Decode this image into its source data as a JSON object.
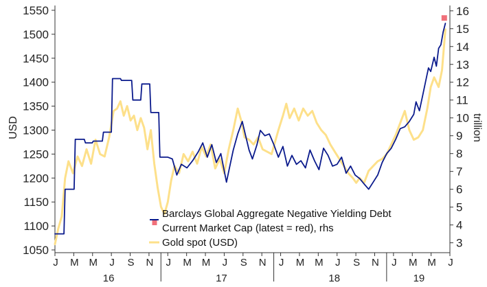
{
  "chart_data": {
    "type": "line",
    "title": "",
    "left_axis": {
      "label": "USD",
      "ylim": [
        1050,
        1560
      ],
      "ticks": [
        1050,
        1100,
        1150,
        1200,
        1250,
        1300,
        1350,
        1400,
        1450,
        1500,
        1550
      ]
    },
    "right_axis": {
      "label": "trillion",
      "ylim": [
        2.6,
        16.3
      ],
      "ticks": [
        3,
        4,
        5,
        6,
        7,
        8,
        9,
        10,
        11,
        12,
        13,
        14,
        15,
        16
      ]
    },
    "x_axis": {
      "start": 2016.0,
      "end": 2019.5,
      "month_labels": [
        "J",
        "M",
        "M",
        "J",
        "S",
        "N",
        "J",
        "M",
        "M",
        "J",
        "S",
        "N",
        "J",
        "M",
        "M",
        "J",
        "S",
        "N",
        "J",
        "M",
        "M",
        "J"
      ],
      "month_offsets": [
        0,
        2,
        4,
        6,
        8,
        10,
        12,
        14,
        16,
        18,
        20,
        22,
        24,
        26,
        28,
        30,
        32,
        34,
        36,
        38,
        40,
        42
      ],
      "year_labels": [
        {
          "label": "16",
          "at": 2016.5
        },
        {
          "label": "17",
          "at": 2017.5
        },
        {
          "label": "18",
          "at": 2018.5
        },
        {
          "label": "19",
          "at": 2019.25
        }
      ]
    },
    "series": [
      {
        "name": "Barclays Global Aggregate Negative Yielding Debt Current Market Cap (latest = red), rhs",
        "axis": "right",
        "color": "#0a1a8c",
        "points": [
          [
            2016.0,
            3.5
          ],
          [
            2016.08,
            3.5
          ],
          [
            2016.09,
            6.0
          ],
          [
            2016.17,
            6.0
          ],
          [
            2016.18,
            8.8
          ],
          [
            2016.26,
            8.8
          ],
          [
            2016.27,
            8.6
          ],
          [
            2016.33,
            8.6
          ],
          [
            2016.34,
            8.7
          ],
          [
            2016.42,
            8.7
          ],
          [
            2016.43,
            9.2
          ],
          [
            2016.5,
            9.2
          ],
          [
            2016.51,
            12.2
          ],
          [
            2016.58,
            12.2
          ],
          [
            2016.59,
            12.1
          ],
          [
            2016.68,
            12.1
          ],
          [
            2016.69,
            11.0
          ],
          [
            2016.76,
            11.0
          ],
          [
            2016.77,
            11.9
          ],
          [
            2016.84,
            11.9
          ],
          [
            2016.85,
            10.3
          ],
          [
            2016.92,
            10.3
          ],
          [
            2016.93,
            7.8
          ],
          [
            2017.0,
            7.8
          ],
          [
            2017.04,
            7.7
          ],
          [
            2017.08,
            6.8
          ],
          [
            2017.12,
            7.4
          ],
          [
            2017.17,
            7.2
          ],
          [
            2017.22,
            7.6
          ],
          [
            2017.27,
            8.1
          ],
          [
            2017.31,
            8.6
          ],
          [
            2017.35,
            7.8
          ],
          [
            2017.39,
            8.5
          ],
          [
            2017.43,
            7.5
          ],
          [
            2017.47,
            8.0
          ],
          [
            2017.52,
            6.4
          ],
          [
            2017.55,
            7.3
          ],
          [
            2017.58,
            8.2
          ],
          [
            2017.62,
            9.1
          ],
          [
            2017.66,
            9.8
          ],
          [
            2017.69,
            9.0
          ],
          [
            2017.72,
            8.2
          ],
          [
            2017.75,
            7.7
          ],
          [
            2017.79,
            8.5
          ],
          [
            2017.82,
            9.3
          ],
          [
            2017.86,
            9.0
          ],
          [
            2017.9,
            9.1
          ],
          [
            2017.94,
            8.5
          ],
          [
            2017.98,
            7.8
          ],
          [
            2018.02,
            8.4
          ],
          [
            2018.06,
            7.3
          ],
          [
            2018.1,
            7.9
          ],
          [
            2018.14,
            7.4
          ],
          [
            2018.18,
            7.6
          ],
          [
            2018.22,
            7.2
          ],
          [
            2018.26,
            8.2
          ],
          [
            2018.3,
            7.6
          ],
          [
            2018.34,
            7.1
          ],
          [
            2018.38,
            8.3
          ],
          [
            2018.42,
            7.9
          ],
          [
            2018.46,
            7.3
          ],
          [
            2018.5,
            7.4
          ],
          [
            2018.54,
            7.8
          ],
          [
            2018.58,
            6.9
          ],
          [
            2018.62,
            7.3
          ],
          [
            2018.66,
            6.8
          ],
          [
            2018.7,
            6.6
          ],
          [
            2018.74,
            6.3
          ],
          [
            2018.78,
            6.0
          ],
          [
            2018.82,
            6.4
          ],
          [
            2018.86,
            6.8
          ],
          [
            2018.9,
            7.5
          ],
          [
            2018.94,
            8.0
          ],
          [
            2018.98,
            8.3
          ],
          [
            2019.02,
            8.8
          ],
          [
            2019.06,
            9.4
          ],
          [
            2019.1,
            9.5
          ],
          [
            2019.14,
            9.8
          ],
          [
            2019.18,
            10.2
          ],
          [
            2019.2,
            10.9
          ],
          [
            2019.23,
            10.4
          ],
          [
            2019.26,
            11.3
          ],
          [
            2019.29,
            12.2
          ],
          [
            2019.31,
            12.8
          ],
          [
            2019.33,
            12.6
          ],
          [
            2019.36,
            13.4
          ],
          [
            2019.38,
            12.9
          ],
          [
            2019.4,
            13.9
          ],
          [
            2019.42,
            14.1
          ],
          [
            2019.44,
            14.8
          ],
          [
            2019.46,
            15.3
          ]
        ],
        "latest": [
          2019.45,
          15.6
        ]
      },
      {
        "name": "Gold spot (USD)",
        "axis": "left",
        "color": "#fde08a",
        "points": [
          [
            2016.0,
            1062
          ],
          [
            2016.03,
            1095
          ],
          [
            2016.06,
            1120
          ],
          [
            2016.09,
            1200
          ],
          [
            2016.12,
            1235
          ],
          [
            2016.16,
            1210
          ],
          [
            2016.2,
            1245
          ],
          [
            2016.24,
            1225
          ],
          [
            2016.28,
            1260
          ],
          [
            2016.32,
            1230
          ],
          [
            2016.36,
            1280
          ],
          [
            2016.4,
            1250
          ],
          [
            2016.44,
            1245
          ],
          [
            2016.48,
            1285
          ],
          [
            2016.52,
            1340
          ],
          [
            2016.55,
            1345
          ],
          [
            2016.58,
            1360
          ],
          [
            2016.61,
            1330
          ],
          [
            2016.64,
            1350
          ],
          [
            2016.67,
            1320
          ],
          [
            2016.7,
            1330
          ],
          [
            2016.73,
            1300
          ],
          [
            2016.76,
            1325
          ],
          [
            2016.79,
            1305
          ],
          [
            2016.82,
            1260
          ],
          [
            2016.85,
            1300
          ],
          [
            2016.88,
            1230
          ],
          [
            2016.91,
            1180
          ],
          [
            2016.94,
            1140
          ],
          [
            2016.97,
            1125
          ],
          [
            2017.0,
            1150
          ],
          [
            2017.03,
            1195
          ],
          [
            2017.06,
            1225
          ],
          [
            2017.1,
            1210
          ],
          [
            2017.14,
            1250
          ],
          [
            2017.18,
            1235
          ],
          [
            2017.22,
            1255
          ],
          [
            2017.26,
            1230
          ],
          [
            2017.3,
            1265
          ],
          [
            2017.34,
            1245
          ],
          [
            2017.38,
            1270
          ],
          [
            2017.42,
            1220
          ],
          [
            2017.46,
            1240
          ],
          [
            2017.5,
            1210
          ],
          [
            2017.54,
            1260
          ],
          [
            2017.58,
            1300
          ],
          [
            2017.62,
            1345
          ],
          [
            2017.65,
            1320
          ],
          [
            2017.68,
            1285
          ],
          [
            2017.72,
            1280
          ],
          [
            2017.76,
            1270
          ],
          [
            2017.8,
            1285
          ],
          [
            2017.84,
            1260
          ],
          [
            2017.88,
            1255
          ],
          [
            2017.92,
            1250
          ],
          [
            2017.95,
            1275
          ],
          [
            2017.98,
            1300
          ],
          [
            2018.02,
            1330
          ],
          [
            2018.05,
            1355
          ],
          [
            2018.08,
            1325
          ],
          [
            2018.12,
            1345
          ],
          [
            2018.16,
            1320
          ],
          [
            2018.2,
            1345
          ],
          [
            2018.24,
            1330
          ],
          [
            2018.28,
            1340
          ],
          [
            2018.32,
            1315
          ],
          [
            2018.36,
            1300
          ],
          [
            2018.4,
            1290
          ],
          [
            2018.44,
            1270
          ],
          [
            2018.48,
            1255
          ],
          [
            2018.52,
            1240
          ],
          [
            2018.56,
            1225
          ],
          [
            2018.6,
            1210
          ],
          [
            2018.64,
            1200
          ],
          [
            2018.67,
            1190
          ],
          [
            2018.7,
            1200
          ],
          [
            2018.74,
            1190
          ],
          [
            2018.78,
            1215
          ],
          [
            2018.82,
            1225
          ],
          [
            2018.86,
            1235
          ],
          [
            2018.9,
            1240
          ],
          [
            2018.94,
            1250
          ],
          [
            2018.98,
            1270
          ],
          [
            2019.02,
            1290
          ],
          [
            2019.06,
            1315
          ],
          [
            2019.1,
            1340
          ],
          [
            2019.14,
            1300
          ],
          [
            2019.18,
            1280
          ],
          [
            2019.22,
            1285
          ],
          [
            2019.26,
            1300
          ],
          [
            2019.3,
            1345
          ],
          [
            2019.33,
            1390
          ],
          [
            2019.36,
            1410
          ],
          [
            2019.4,
            1390
          ],
          [
            2019.43,
            1425
          ],
          [
            2019.46,
            1510
          ]
        ]
      }
    ],
    "legend": {
      "placement": "bottom-right",
      "entries": [
        {
          "lines": [
            "Barclays Global Aggregate Negative Yielding Debt",
            "Current Market Cap (latest = red), rhs"
          ],
          "color": "#0a1a8c",
          "marker_color": "#f0707a"
        },
        {
          "lines": [
            "Gold spot (USD)"
          ],
          "color": "#fde08a"
        }
      ]
    }
  }
}
